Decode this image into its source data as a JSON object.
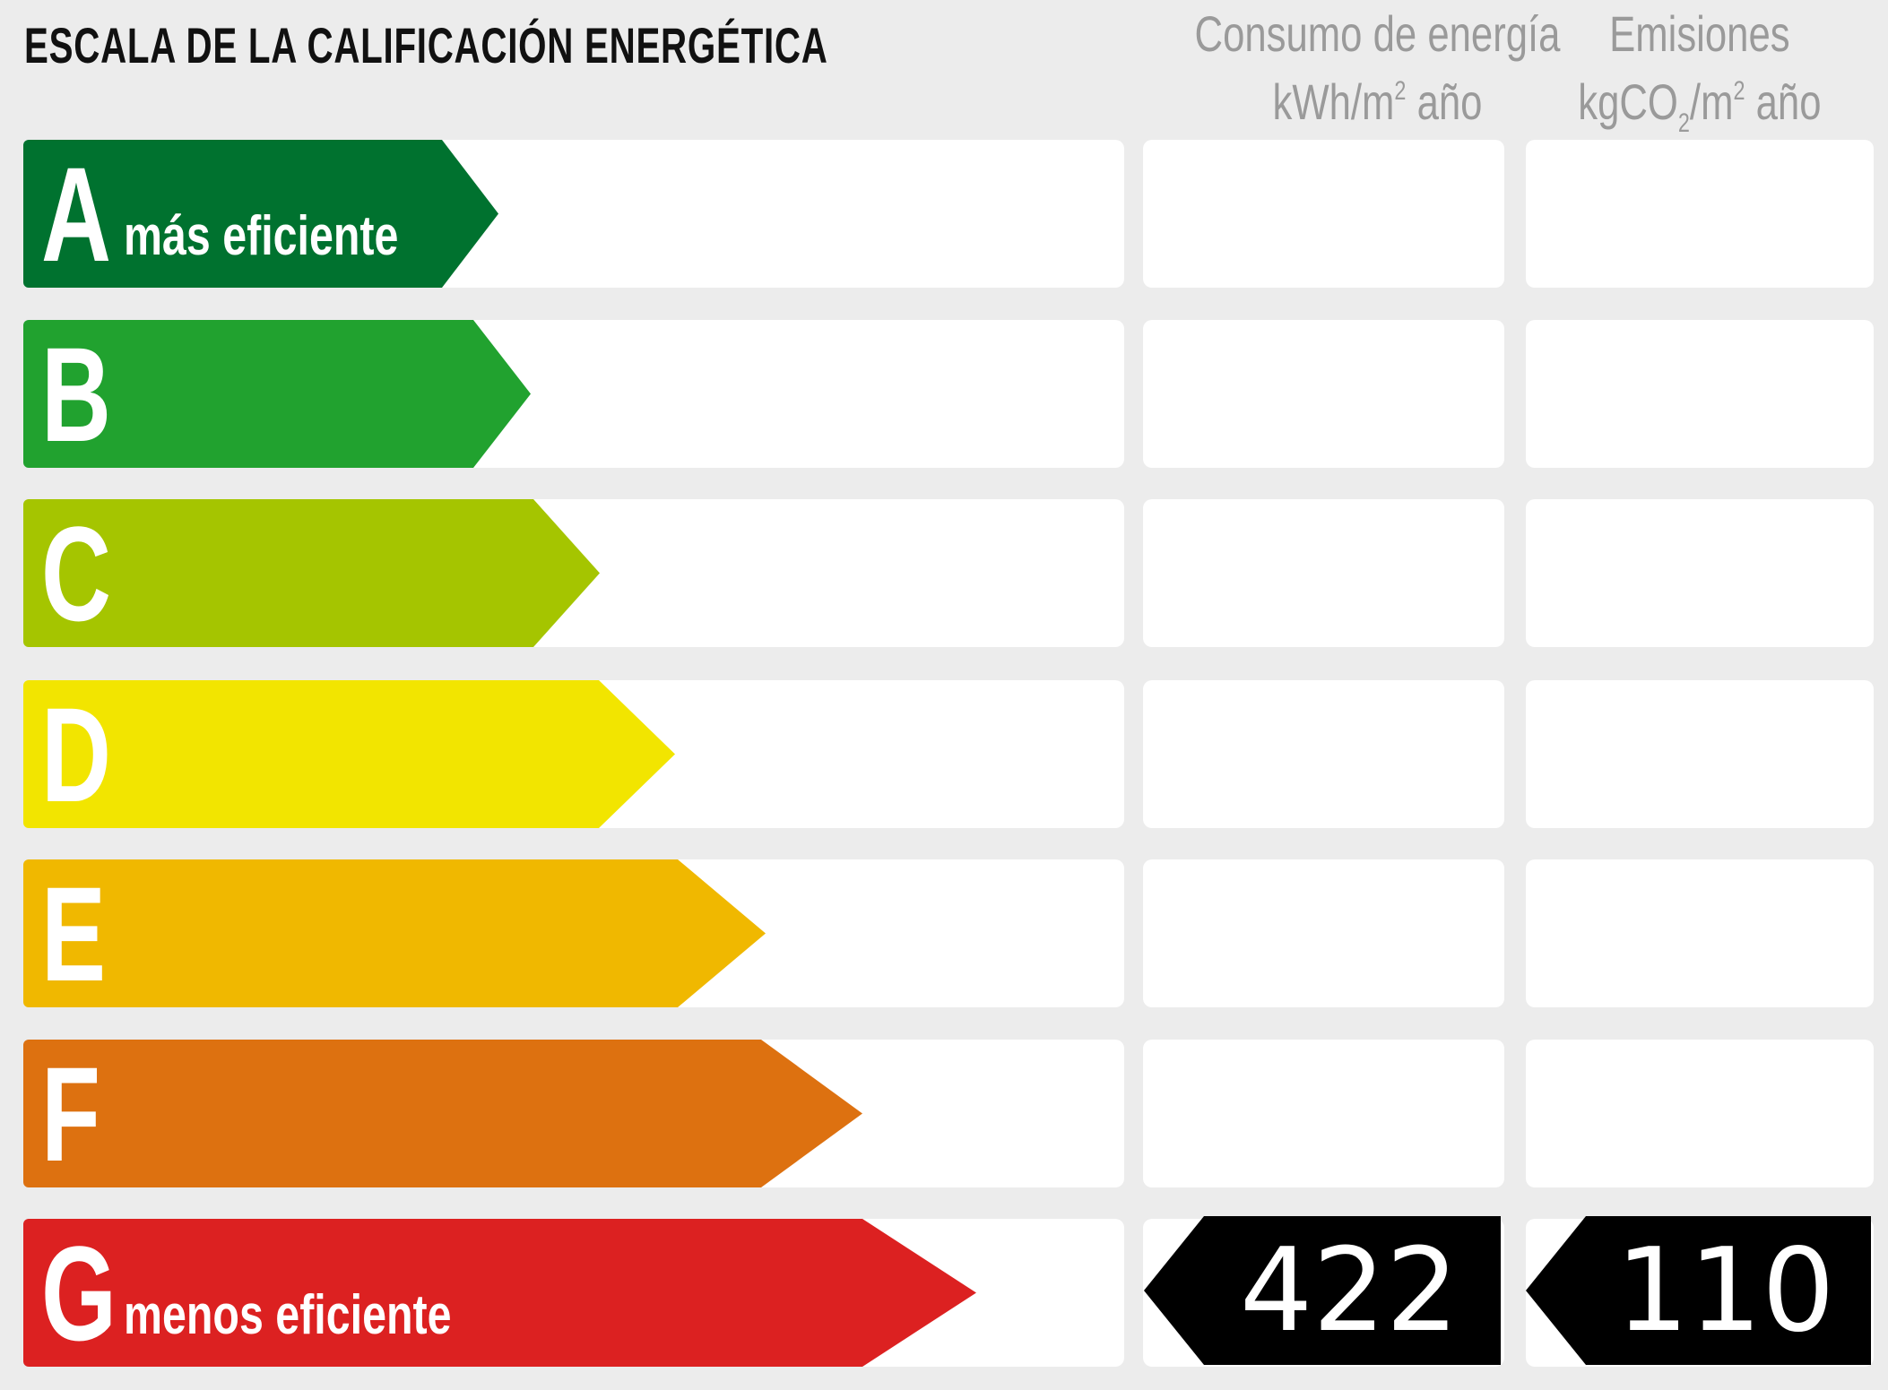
{
  "title": "ESCALA DE LA CALIFICACIÓN ENERGÉTICA",
  "columns": {
    "energy": {
      "line1": "Consumo de energía",
      "unit_pre": "kWh/m",
      "unit_sup": "2",
      "unit_post": " año"
    },
    "emissions": {
      "line1": "Emisiones",
      "unit_pre": "kgCO",
      "unit_sub": "2",
      "unit_mid": "/m",
      "unit_sup": "2",
      "unit_post": " año"
    }
  },
  "ratings": [
    {
      "letter": "A",
      "label": "más eficiente",
      "color": "#00722F"
    },
    {
      "letter": "B",
      "label": "",
      "color": "#21A22F"
    },
    {
      "letter": "C",
      "label": "",
      "color": "#A5C500"
    },
    {
      "letter": "D",
      "label": "",
      "color": "#F2E500"
    },
    {
      "letter": "E",
      "label": "",
      "color": "#F0B800"
    },
    {
      "letter": "F",
      "label": "",
      "color": "#DD7110"
    },
    {
      "letter": "G",
      "label": "menos eficiente",
      "color": "#DC2121"
    }
  ],
  "current": {
    "rating": "G",
    "energy_value": "422",
    "emissions_value": "110"
  }
}
